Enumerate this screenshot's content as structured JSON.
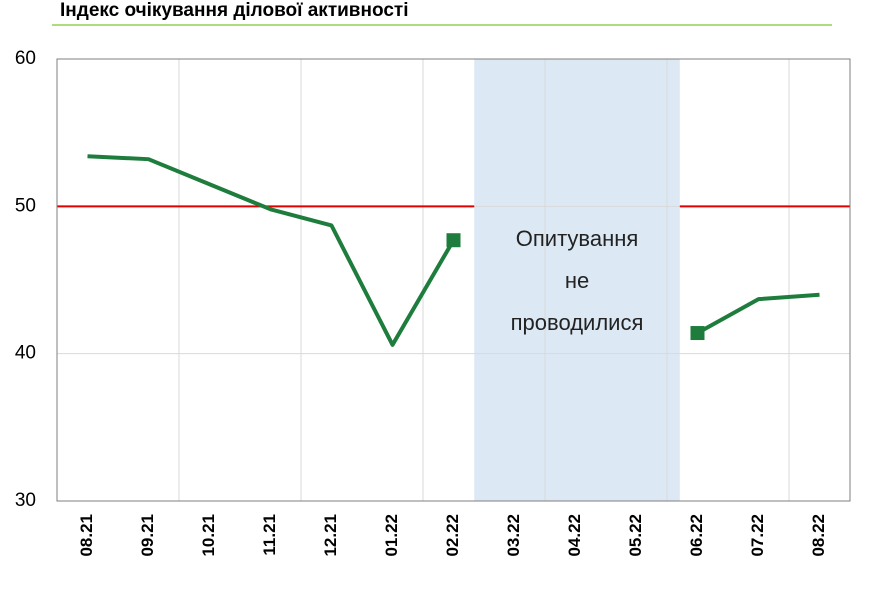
{
  "chart_data": {
    "type": "line",
    "title": "Індекс очікування ділової активності",
    "categories": [
      "08.21",
      "09.21",
      "10.21",
      "11.21",
      "12.21",
      "01.22",
      "02.22",
      "03.22",
      "04.22",
      "05.22",
      "06.22",
      "07.22",
      "08.22"
    ],
    "series": [
      {
        "color": "#1e7d3c",
        "values": [
          53.4,
          53.2,
          51.5,
          49.8,
          48.7,
          40.6,
          47.7,
          null,
          null,
          null,
          41.4,
          43.7,
          44.0
        ]
      }
    ],
    "ylim": [
      30,
      60
    ],
    "yticks": [
      30,
      40,
      50,
      60
    ],
    "grid": true,
    "reference_line": {
      "value": 50,
      "color": "#e00000"
    },
    "annotation": [
      "Опитування",
      "не",
      "проводилися"
    ]
  }
}
